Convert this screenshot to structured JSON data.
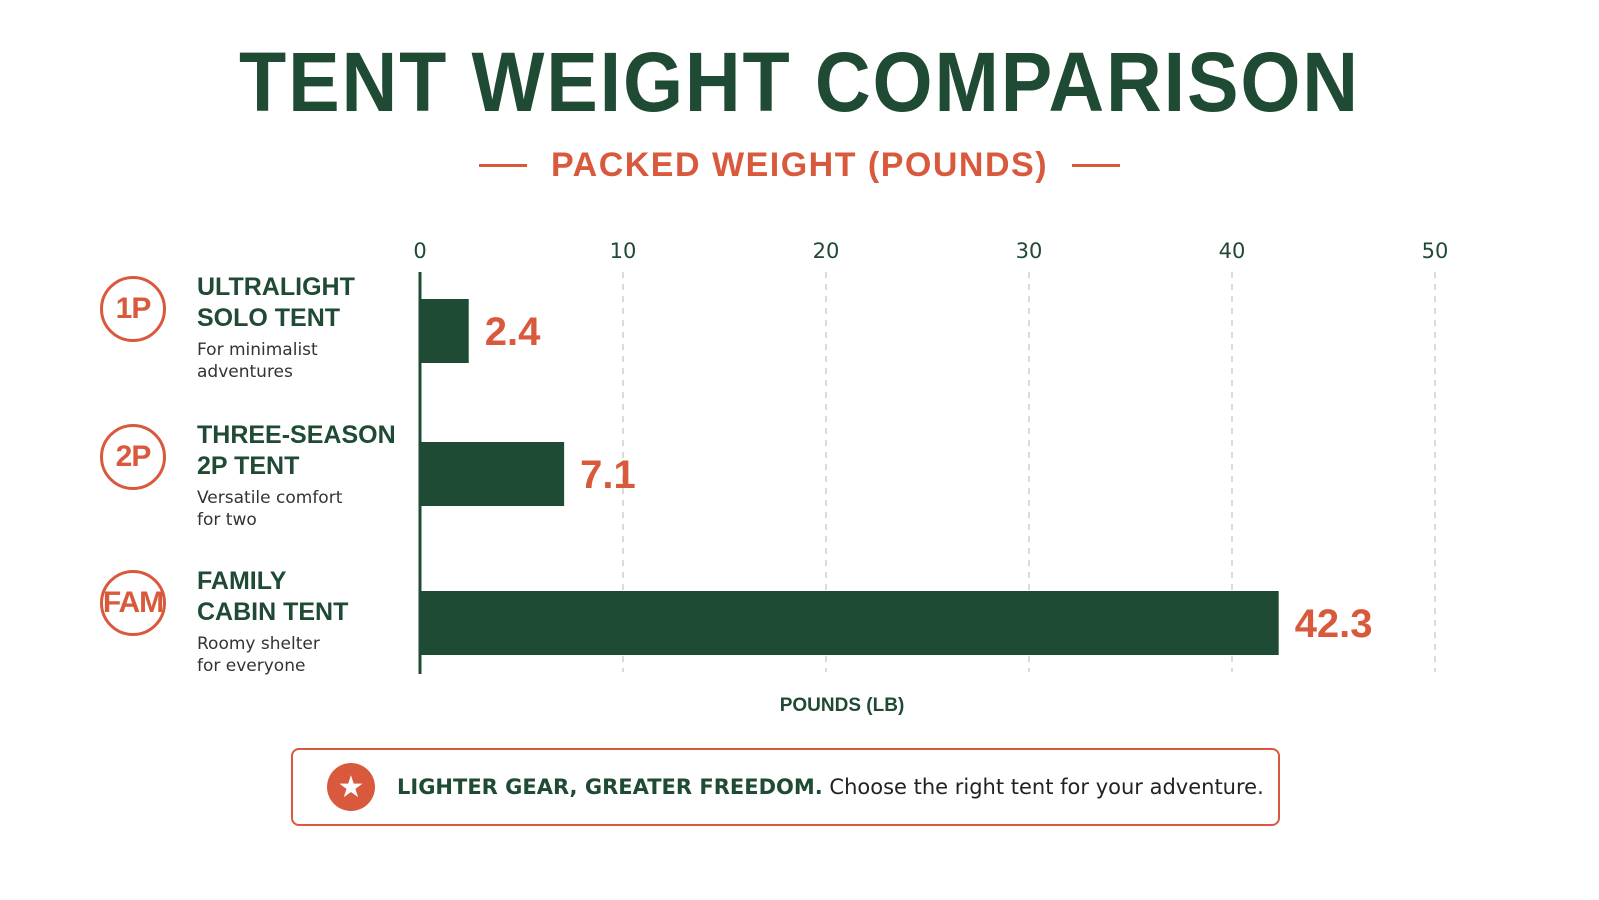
{
  "title": "TENT WEIGHT COMPARISON",
  "subtitle": "PACKED WEIGHT (POUNDS)",
  "rows": [
    {
      "badge": "1P",
      "name": "ULTRALIGHT\nSOLO TENT",
      "desc": "For minimalist\nadventures"
    },
    {
      "badge": "2P",
      "name": "THREE-SEASON\n2P TENT",
      "desc": "Versatile comfort\nfor two"
    },
    {
      "badge": "FAM",
      "name": "FAMILY\nCABIN TENT",
      "desc": "Roomy shelter\nfor everyone"
    }
  ],
  "chart_data": {
    "type": "bar",
    "orientation": "horizontal",
    "categories": [
      "ULTRALIGHT SOLO TENT",
      "THREE-SEASON 2P TENT",
      "FAMILY CABIN TENT"
    ],
    "values": [
      2.4,
      7.1,
      42.3
    ],
    "data_labels": [
      "2.4",
      "7.1",
      "42.3"
    ],
    "xlabel": "POUNDS (LB)",
    "xlim": [
      0,
      50
    ],
    "xticks": [
      0,
      10,
      20,
      30,
      40,
      50
    ],
    "grid": "vertical dashed",
    "colors": {
      "bar": "#1f4a33",
      "label": "#d9593d",
      "grid": "#cfcfcf",
      "axis": "#1f4a33"
    }
  },
  "callout": {
    "icon": "star-icon",
    "strong": "LIGHTER GEAR, GREATER FREEDOM.",
    "text": " Choose the right tent for your adventure."
  }
}
